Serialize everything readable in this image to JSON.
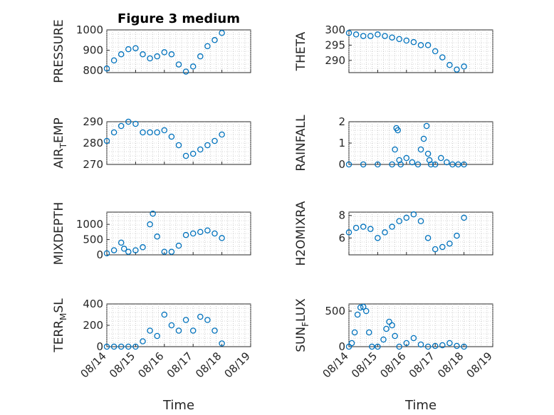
{
  "figure_title": "Figure 3 medium",
  "xlabel": "Time",
  "marker_color": "#0072BD",
  "x_tick_labels": [
    "08/14",
    "08/15",
    "08/16",
    "08/17",
    "08/18",
    "08/19"
  ],
  "chart_data": [
    {
      "type": "scatter",
      "title": "Figure 3 medium",
      "ylabel": "PRESSURE",
      "ylabel_sub": "",
      "xlabel": "",
      "xlim": [
        0,
        5
      ],
      "ylim": [
        790,
        1000
      ],
      "yticks": [
        800,
        900,
        1000
      ],
      "grid": true,
      "series": [
        {
          "x": [
            0,
            0.25,
            0.5,
            0.75,
            1.0,
            1.25,
            1.5,
            1.75,
            2.0,
            2.25,
            2.5,
            2.75,
            3.0,
            3.25,
            3.5,
            3.75,
            4.0
          ],
          "y": [
            810,
            850,
            880,
            905,
            910,
            880,
            860,
            870,
            890,
            880,
            830,
            795,
            820,
            870,
            920,
            950,
            985
          ]
        }
      ]
    },
    {
      "type": "scatter",
      "title": "",
      "ylabel": "THETA",
      "ylabel_sub": "",
      "xlabel": "",
      "xlim": [
        0,
        5
      ],
      "ylim": [
        286,
        300
      ],
      "yticks": [
        290,
        295,
        300
      ],
      "grid": true,
      "series": [
        {
          "x": [
            0,
            0.25,
            0.5,
            0.75,
            1.0,
            1.25,
            1.5,
            1.75,
            2.0,
            2.25,
            2.5,
            2.75,
            3.0,
            3.25,
            3.5,
            3.75,
            4.0
          ],
          "y": [
            299,
            298.5,
            298,
            298,
            298.5,
            298,
            297.5,
            297,
            296.5,
            296,
            295,
            295,
            293,
            291,
            288.5,
            287,
            288
          ]
        }
      ]
    },
    {
      "type": "scatter",
      "title": "",
      "ylabel": "AIR",
      "ylabel_sub": "T",
      "ylabel_tail": "EMP",
      "xlabel": "",
      "xlim": [
        0,
        5
      ],
      "ylim": [
        270,
        290
      ],
      "yticks": [
        270,
        280,
        290
      ],
      "grid": true,
      "series": [
        {
          "x": [
            0,
            0.25,
            0.5,
            0.75,
            1.0,
            1.25,
            1.5,
            1.75,
            2.0,
            2.25,
            2.5,
            2.75,
            3.0,
            3.25,
            3.5,
            3.75,
            4.0
          ],
          "y": [
            281,
            285,
            288,
            290,
            289,
            285,
            285,
            285,
            286,
            283,
            279,
            274,
            275,
            277,
            279,
            281,
            284
          ]
        }
      ]
    },
    {
      "type": "scatter",
      "title": "",
      "ylabel": "RAINFALL",
      "ylabel_sub": "",
      "xlabel": "",
      "xlim": [
        0,
        5
      ],
      "ylim": [
        0,
        2
      ],
      "yticks": [
        0,
        1,
        2
      ],
      "grid": true,
      "series": [
        {
          "x": [
            0,
            0.5,
            1.0,
            1.5,
            1.6,
            1.65,
            1.7,
            1.75,
            1.8,
            2.0,
            2.2,
            2.4,
            2.5,
            2.6,
            2.7,
            2.75,
            2.8,
            2.85,
            3.0,
            3.2,
            3.4,
            3.6,
            3.8,
            4.0
          ],
          "y": [
            0,
            0,
            0,
            0,
            0.7,
            1.7,
            1.6,
            0.2,
            0,
            0.3,
            0.1,
            0,
            0.7,
            1.2,
            1.8,
            0.5,
            0.2,
            0,
            0,
            0.3,
            0.1,
            0,
            0,
            0
          ]
        }
      ]
    },
    {
      "type": "scatter",
      "title": "",
      "ylabel": "MIXDEPTH",
      "ylabel_sub": "",
      "xlabel": "",
      "xlim": [
        0,
        5
      ],
      "ylim": [
        0,
        1400
      ],
      "yticks": [
        0,
        500,
        1000
      ],
      "grid": true,
      "series": [
        {
          "x": [
            0,
            0.25,
            0.5,
            0.6,
            0.75,
            1.0,
            1.25,
            1.5,
            1.6,
            1.75,
            2.0,
            2.25,
            2.5,
            2.75,
            3.0,
            3.25,
            3.5,
            3.75,
            4.0
          ],
          "y": [
            50,
            150,
            400,
            200,
            100,
            150,
            250,
            1000,
            1350,
            600,
            100,
            100,
            300,
            650,
            700,
            750,
            800,
            700,
            550
          ]
        }
      ]
    },
    {
      "type": "scatter",
      "title": "",
      "ylabel": "H2OMIXRA",
      "ylabel_sub": "",
      "xlabel": "",
      "xlim": [
        0,
        5
      ],
      "ylim": [
        4.5,
        8.3
      ],
      "yticks": [
        6,
        8
      ],
      "grid": true,
      "series": [
        {
          "x": [
            0,
            0.25,
            0.5,
            0.75,
            1.0,
            1.25,
            1.5,
            1.75,
            2.0,
            2.25,
            2.5,
            2.75,
            3.0,
            3.25,
            3.5,
            3.75,
            4.0
          ],
          "y": [
            6.5,
            6.9,
            7.0,
            6.8,
            6.0,
            6.5,
            7.0,
            7.5,
            7.8,
            8.1,
            7.5,
            6.0,
            5.0,
            5.2,
            5.5,
            6.2,
            7.8
          ]
        }
      ]
    },
    {
      "type": "scatter",
      "title": "",
      "ylabel": "TERR",
      "ylabel_sub": "M",
      "ylabel_tail": "SL",
      "xlabel": "Time",
      "xlim": [
        0,
        5
      ],
      "ylim": [
        0,
        400
      ],
      "yticks": [
        0,
        200,
        400
      ],
      "grid": true,
      "series": [
        {
          "x": [
            0,
            0.25,
            0.5,
            0.75,
            1.0,
            1.25,
            1.5,
            1.75,
            2.0,
            2.25,
            2.5,
            2.75,
            3.0,
            3.25,
            3.5,
            3.75,
            4.0
          ],
          "y": [
            0,
            0,
            0,
            0,
            0,
            50,
            150,
            100,
            300,
            200,
            150,
            250,
            150,
            280,
            250,
            150,
            30
          ]
        }
      ]
    },
    {
      "type": "scatter",
      "title": "",
      "ylabel": "SUN",
      "ylabel_sub": "F",
      "ylabel_tail": "LUX",
      "xlabel": "Time",
      "xlim": [
        0,
        5
      ],
      "ylim": [
        0,
        600
      ],
      "yticks": [
        0,
        500
      ],
      "grid": true,
      "series": [
        {
          "x": [
            0,
            0.1,
            0.2,
            0.3,
            0.4,
            0.5,
            0.6,
            0.7,
            0.8,
            1.0,
            1.2,
            1.3,
            1.4,
            1.5,
            1.6,
            1.75,
            2.0,
            2.25,
            2.5,
            2.75,
            3.0,
            3.25,
            3.5,
            3.75,
            4.0
          ],
          "y": [
            0,
            50,
            200,
            450,
            550,
            560,
            500,
            200,
            0,
            0,
            100,
            250,
            350,
            300,
            150,
            0,
            50,
            120,
            30,
            0,
            10,
            20,
            50,
            10,
            0
          ]
        }
      ]
    }
  ]
}
